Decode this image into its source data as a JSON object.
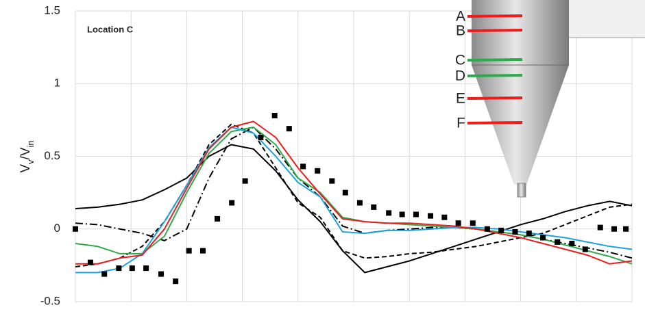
{
  "chart_data": {
    "type": "line",
    "title": "Location C",
    "ylabel": [
      "V",
      "v",
      "/V",
      "in"
    ],
    "xlim": [
      0,
      100
    ],
    "xticks": [
      0,
      10,
      20,
      30,
      40,
      50,
      60,
      70,
      80,
      90,
      100
    ],
    "show_xtick_labels": false,
    "ylim": [
      -0.5,
      1.5
    ],
    "yticks": [
      1.5,
      1,
      0.5,
      0,
      -0.5
    ],
    "grid": true,
    "x": [
      0,
      4,
      8,
      12,
      16,
      20,
      24,
      28,
      32,
      36,
      40,
      44,
      48,
      52,
      56,
      60,
      64,
      68,
      72,
      76,
      80,
      84,
      88,
      92,
      96,
      100
    ],
    "series": [
      {
        "color": "#000000",
        "style": "solid",
        "values": [
          0.14,
          0.15,
          0.17,
          0.2,
          0.27,
          0.35,
          0.5,
          0.58,
          0.55,
          0.4,
          0.2,
          0.05,
          -0.15,
          -0.3,
          -0.26,
          -0.22,
          -0.17,
          -0.12,
          -0.07,
          -0.02,
          0.03,
          0.07,
          0.12,
          0.16,
          0.19,
          0.16
        ]
      },
      {
        "color": "#000000",
        "style": "dashed",
        "values": [
          -0.26,
          -0.24,
          -0.2,
          -0.12,
          0.05,
          0.3,
          0.58,
          0.72,
          0.66,
          0.42,
          0.18,
          0.08,
          -0.15,
          -0.2,
          -0.19,
          -0.17,
          -0.16,
          -0.14,
          -0.12,
          -0.09,
          -0.06,
          -0.03,
          0.03,
          0.09,
          0.15,
          0.17
        ]
      },
      {
        "color": "#000000",
        "style": "dashdot",
        "values": [
          0.04,
          0.03,
          0.0,
          -0.03,
          -0.08,
          0.0,
          0.35,
          0.62,
          0.7,
          0.55,
          0.35,
          0.22,
          0.02,
          -0.03,
          -0.01,
          0.0,
          0.01,
          0.01,
          0.0,
          -0.02,
          -0.04,
          -0.07,
          -0.1,
          -0.13,
          -0.16,
          -0.2
        ]
      },
      {
        "color": "#2eaa4a",
        "style": "solid",
        "values": [
          -0.1,
          -0.12,
          -0.17,
          -0.17,
          -0.05,
          0.25,
          0.52,
          0.67,
          0.7,
          0.58,
          0.35,
          0.25,
          0.08,
          0.05,
          0.04,
          0.03,
          0.02,
          0.01,
          0.0,
          -0.02,
          -0.04,
          -0.07,
          -0.11,
          -0.15,
          -0.19,
          -0.24
        ]
      },
      {
        "color": "#1aa3e0",
        "style": "solid",
        "values": [
          -0.3,
          -0.3,
          -0.27,
          -0.17,
          0.05,
          0.3,
          0.56,
          0.7,
          0.66,
          0.5,
          0.32,
          0.22,
          -0.02,
          -0.03,
          -0.01,
          -0.01,
          0.0,
          0.01,
          0.01,
          0.0,
          -0.02,
          -0.04,
          -0.06,
          -0.09,
          -0.12,
          -0.14
        ]
      },
      {
        "color": "#ee1c1c",
        "style": "solid",
        "values": [
          -0.24,
          -0.24,
          -0.2,
          -0.18,
          0.0,
          0.28,
          0.55,
          0.7,
          0.74,
          0.63,
          0.42,
          0.24,
          0.07,
          0.05,
          0.04,
          0.04,
          0.03,
          0.02,
          0.0,
          -0.03,
          -0.06,
          -0.1,
          -0.14,
          -0.18,
          -0.24,
          -0.22
        ]
      }
    ],
    "points": {
      "color": "#000000",
      "x": [
        0,
        2.7,
        5.2,
        7.8,
        10.2,
        12.7,
        15.4,
        18,
        20.4,
        22.9,
        25.5,
        28.1,
        30.5,
        33.3,
        35.8,
        38.4,
        40.9,
        43.5,
        46.1,
        48.5,
        51.1,
        53.6,
        56.3,
        58.7,
        61.2,
        63.8,
        66.3,
        68.8,
        71.4,
        74,
        76.5,
        79,
        81.5,
        84,
        86.6,
        89.2,
        91.6,
        94.3,
        96.8,
        98.9
      ],
      "values": [
        0.0,
        -0.23,
        -0.31,
        -0.27,
        -0.27,
        -0.27,
        -0.31,
        -0.36,
        -0.15,
        -0.15,
        0.07,
        0.18,
        0.33,
        0.63,
        0.78,
        0.69,
        0.43,
        0.4,
        0.33,
        0.25,
        0.18,
        0.15,
        0.11,
        0.1,
        0.1,
        0.09,
        0.08,
        0.04,
        0.04,
        0.0,
        -0.01,
        -0.02,
        -0.03,
        -0.06,
        -0.09,
        -0.1,
        -0.14,
        0.01,
        0.0,
        0.0
      ]
    }
  },
  "inset": {
    "labels": [
      "A",
      "B",
      "C",
      "D",
      "E",
      "F"
    ],
    "colors": [
      "#ee1c1c",
      "#ee1c1c",
      "#2eaa4a",
      "#2eaa4a",
      "#ee1c1c",
      "#ee1c1c"
    ]
  }
}
